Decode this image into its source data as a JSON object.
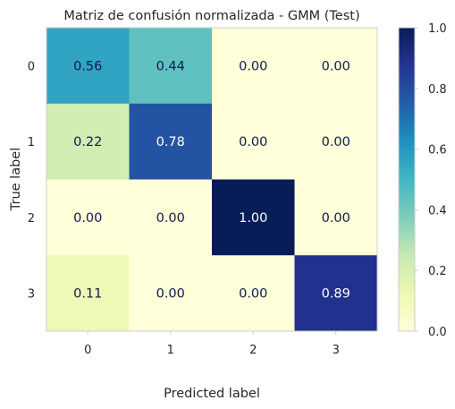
{
  "chart_data": {
    "type": "heatmap",
    "title": "Matriz de confusión normalizada - GMM (Test)",
    "xlabel": "Predicted label",
    "ylabel": "True label",
    "x_categories": [
      "0",
      "1",
      "2",
      "3"
    ],
    "y_categories": [
      "0",
      "1",
      "2",
      "3"
    ],
    "values": [
      [
        0.56,
        0.44,
        0.0,
        0.0
      ],
      [
        0.22,
        0.78,
        0.0,
        0.0
      ],
      [
        0.0,
        0.0,
        1.0,
        0.0
      ],
      [
        0.11,
        0.0,
        0.0,
        0.89
      ]
    ],
    "colormap": "YlGnBu",
    "vmin": 0.0,
    "vmax": 1.0,
    "colorbar_ticks": [
      "0.0",
      "0.2",
      "0.4",
      "0.6",
      "0.8",
      "1.0"
    ],
    "grid": false
  }
}
